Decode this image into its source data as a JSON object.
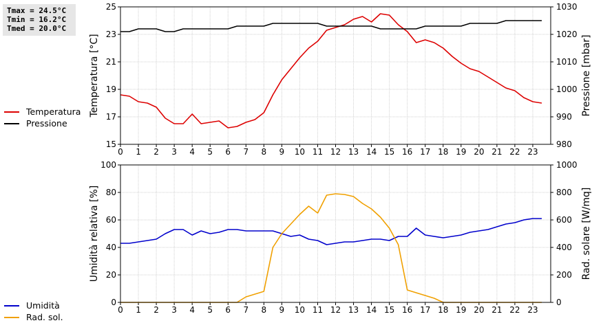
{
  "stats": {
    "tmax": "Tmax = 24.5°C",
    "tmin": "Tmin = 16.2°C",
    "tmed": "Tmed = 20.0°C"
  },
  "legend_top": [
    {
      "label": "Temperatura",
      "color": "#dd0000"
    },
    {
      "label": "Pressione",
      "color": "#000000"
    }
  ],
  "legend_bottom": [
    {
      "label": "Umidità",
      "color": "#0000cc"
    },
    {
      "label": "Rad. sol.",
      "color": "#f0a000"
    }
  ],
  "chart_data": [
    {
      "type": "line",
      "x_ticks": [
        "0",
        "1",
        "2",
        "3",
        "4",
        "5",
        "6",
        "7",
        "8",
        "9",
        "10",
        "11",
        "12",
        "13",
        "14",
        "15",
        "16",
        "17",
        "18",
        "19",
        "20",
        "21",
        "22",
        "23"
      ],
      "xlim": [
        0,
        24
      ],
      "ylabel": "Temperatura [°C]",
      "y2label": "Pressione [mbar]",
      "ylim": [
        15,
        25
      ],
      "y_ticks": [
        "15",
        "17",
        "19",
        "21",
        "23",
        "25"
      ],
      "y2lim": [
        980,
        1030
      ],
      "y2_ticks": [
        "980",
        "990",
        "1000",
        "1010",
        "1020",
        "1030"
      ],
      "grid": true,
      "series": [
        {
          "name": "Temperatura",
          "axis": "left",
          "color": "#dd0000",
          "x": [
            0,
            0.5,
            1,
            1.5,
            2,
            2.5,
            3,
            3.5,
            4,
            4.5,
            5,
            5.5,
            6,
            6.5,
            7,
            7.5,
            8,
            8.5,
            9,
            9.5,
            10,
            10.5,
            11,
            11.5,
            12,
            12.5,
            13,
            13.5,
            14,
            14.5,
            15,
            15.5,
            16,
            16.5,
            17,
            17.5,
            18,
            18.5,
            19,
            19.5,
            20,
            20.5,
            21,
            21.5,
            22,
            22.5,
            23,
            23.5
          ],
          "values": [
            18.6,
            18.5,
            18.1,
            18.0,
            17.7,
            16.9,
            16.5,
            16.5,
            17.2,
            16.5,
            16.6,
            16.7,
            16.2,
            16.3,
            16.6,
            16.8,
            17.3,
            18.6,
            19.7,
            20.5,
            21.3,
            22.0,
            22.5,
            23.3,
            23.5,
            23.7,
            24.1,
            24.3,
            23.9,
            24.5,
            24.4,
            23.7,
            23.2,
            22.4,
            22.6,
            22.4,
            22.0,
            21.4,
            20.9,
            20.5,
            20.3,
            19.9,
            19.5,
            19.1,
            18.9,
            18.4,
            18.1,
            18.0
          ]
        },
        {
          "name": "Pressione",
          "axis": "right",
          "color": "#000000",
          "x": [
            0,
            0.5,
            1,
            1.5,
            2,
            2.5,
            3,
            3.5,
            4,
            4.5,
            5,
            5.5,
            6,
            6.5,
            7,
            7.5,
            8,
            8.5,
            9,
            9.5,
            10,
            10.5,
            11,
            11.5,
            12,
            12.5,
            13,
            13.5,
            14,
            14.5,
            15,
            15.5,
            16,
            16.5,
            17,
            17.5,
            18,
            18.5,
            19,
            19.5,
            20,
            20.5,
            21,
            21.5,
            22,
            22.5,
            23,
            23.5
          ],
          "values": [
            1021,
            1021,
            1022,
            1022,
            1022,
            1021,
            1021,
            1022,
            1022,
            1022,
            1022,
            1022,
            1022,
            1023,
            1023,
            1023,
            1023,
            1024,
            1024,
            1024,
            1024,
            1024,
            1024,
            1023,
            1023,
            1023,
            1023,
            1023,
            1023,
            1022,
            1022,
            1022,
            1022,
            1022,
            1023,
            1023,
            1023,
            1023,
            1023,
            1024,
            1024,
            1024,
            1024,
            1025,
            1025,
            1025,
            1025,
            1025
          ]
        }
      ]
    },
    {
      "type": "line",
      "x_ticks": [
        "0",
        "1",
        "2",
        "3",
        "4",
        "5",
        "6",
        "7",
        "8",
        "9",
        "10",
        "11",
        "12",
        "13",
        "14",
        "15",
        "16",
        "17",
        "18",
        "19",
        "20",
        "21",
        "22",
        "23"
      ],
      "xlim": [
        0,
        24
      ],
      "ylabel": "Umidità relativa [%]",
      "y2label": "Rad. solare [W/mq]",
      "ylim": [
        0,
        100
      ],
      "y_ticks": [
        "0",
        "20",
        "40",
        "60",
        "80",
        "100"
      ],
      "y2lim": [
        0,
        1000
      ],
      "y2_ticks": [
        "0",
        "200",
        "400",
        "600",
        "800",
        "1000"
      ],
      "grid": true,
      "series": [
        {
          "name": "Umidità",
          "axis": "left",
          "color": "#0000cc",
          "x": [
            0,
            0.5,
            1,
            1.5,
            2,
            2.5,
            3,
            3.5,
            4,
            4.5,
            5,
            5.5,
            6,
            6.5,
            7,
            7.5,
            8,
            8.5,
            9,
            9.5,
            10,
            10.5,
            11,
            11.5,
            12,
            12.5,
            13,
            13.5,
            14,
            14.5,
            15,
            15.5,
            16,
            16.5,
            17,
            17.5,
            18,
            18.5,
            19,
            19.5,
            20,
            20.5,
            21,
            21.5,
            22,
            22.5,
            23,
            23.5
          ],
          "values": [
            43,
            43,
            44,
            45,
            46,
            50,
            53,
            53,
            49,
            52,
            50,
            51,
            53,
            53,
            52,
            52,
            52,
            52,
            50,
            48,
            49,
            46,
            45,
            42,
            43,
            44,
            44,
            45,
            46,
            46,
            45,
            48,
            48,
            54,
            49,
            48,
            47,
            48,
            49,
            51,
            52,
            53,
            55,
            57,
            58,
            60,
            61,
            61
          ]
        },
        {
          "name": "Rad. sol.",
          "axis": "right",
          "color": "#f0a000",
          "x": [
            0,
            0.5,
            1,
            1.5,
            2,
            2.5,
            3,
            3.5,
            4,
            4.5,
            5,
            5.5,
            6,
            6.5,
            7,
            7.5,
            8,
            8.5,
            9,
            9.5,
            10,
            10.5,
            11,
            11.5,
            12,
            12.5,
            13,
            13.5,
            14,
            14.5,
            15,
            15.5,
            16,
            16.5,
            17,
            17.5,
            18,
            18.5,
            19,
            19.5,
            20,
            20.5,
            21,
            21.5,
            22,
            22.5,
            23,
            23.5
          ],
          "values": [
            0,
            0,
            0,
            0,
            0,
            0,
            0,
            0,
            0,
            0,
            0,
            0,
            0,
            0,
            40,
            60,
            80,
            400,
            500,
            570,
            640,
            700,
            650,
            780,
            790,
            785,
            770,
            720,
            680,
            620,
            540,
            420,
            90,
            70,
            50,
            30,
            0,
            0,
            0,
            0,
            0,
            0,
            0,
            0,
            0,
            0,
            0,
            0
          ]
        }
      ]
    }
  ]
}
